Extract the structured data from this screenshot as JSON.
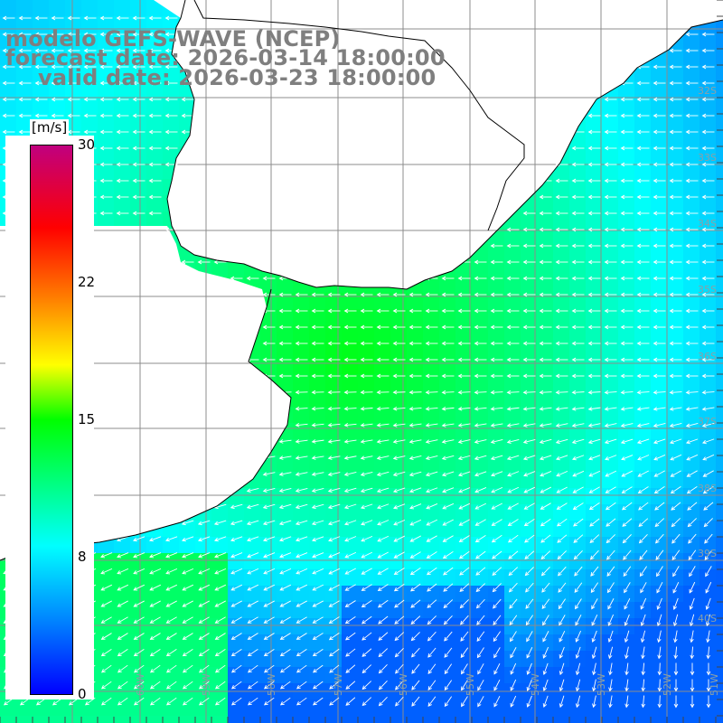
{
  "title": {
    "line1": "modelo GEFS-WAVE (NCEP)",
    "line2": "forecast date: 2026-03-14 18:00:00",
    "line3": "valid date: 2026-03-23 18:00:00"
  },
  "colorbar": {
    "unit": "[m/s]",
    "min": 0,
    "max": 30,
    "ticks": [
      "30",
      "22",
      "15",
      "8",
      "0"
    ],
    "tick_values": [
      30,
      22,
      15,
      8,
      0
    ],
    "colors": [
      "#0000ff",
      "#0080ff",
      "#00ffff",
      "#00ff00",
      "#ffff00",
      "#ff8000",
      "#ff0000",
      "#c0007f"
    ]
  },
  "map": {
    "lat_labels": [
      "32S",
      "33S",
      "34S",
      "35S",
      "36S",
      "37S",
      "38S",
      "39S",
      "40S"
    ],
    "lon_labels": [
      "62W",
      "61W",
      "60W",
      "59W",
      "58W",
      "57W",
      "56W",
      "55W",
      "54W",
      "53W",
      "52W",
      "51W"
    ],
    "land_color": "#ffffff",
    "coast_color": "#000000",
    "grid_color": "#808080",
    "arrow_color": "#ffffff",
    "wind_direction": "from east, turning northward offshore"
  }
}
